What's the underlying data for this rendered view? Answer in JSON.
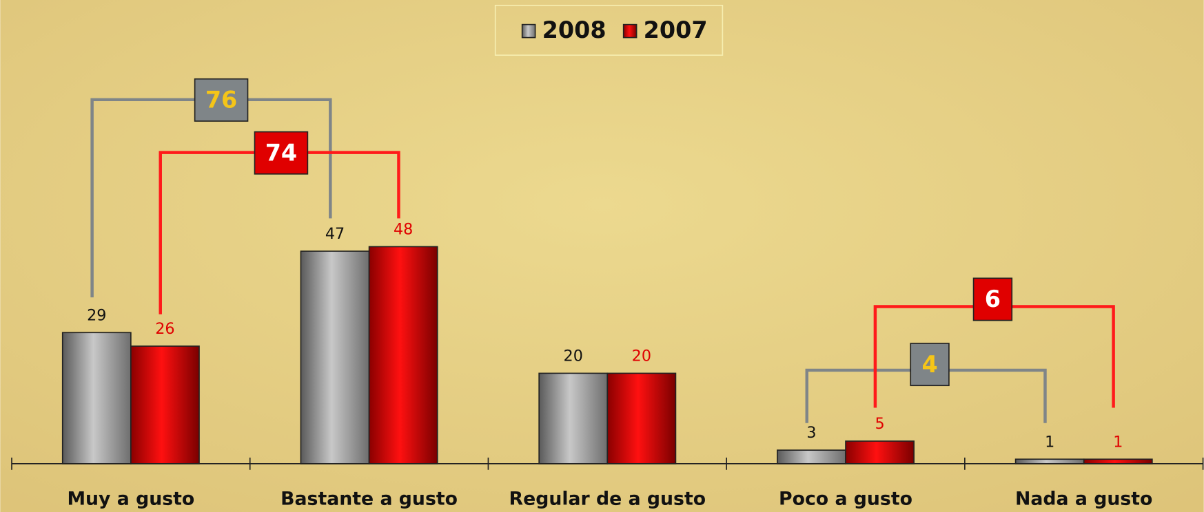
{
  "chart_data": {
    "type": "bar",
    "categories": [
      "Muy a gusto",
      "Bastante a gusto",
      "Regular de a gusto",
      "Poco a gusto",
      "Nada a gusto"
    ],
    "series": [
      {
        "name": "2008",
        "color": "#a8a8a8",
        "values": [
          29,
          47,
          20,
          3,
          1
        ]
      },
      {
        "name": "2007",
        "color": "#e00000",
        "values": [
          26,
          48,
          20,
          5,
          1
        ]
      }
    ],
    "ylim": [
      0,
      100
    ],
    "legend": "top",
    "annotations": [
      76,
      74,
      4,
      6
    ]
  }
}
